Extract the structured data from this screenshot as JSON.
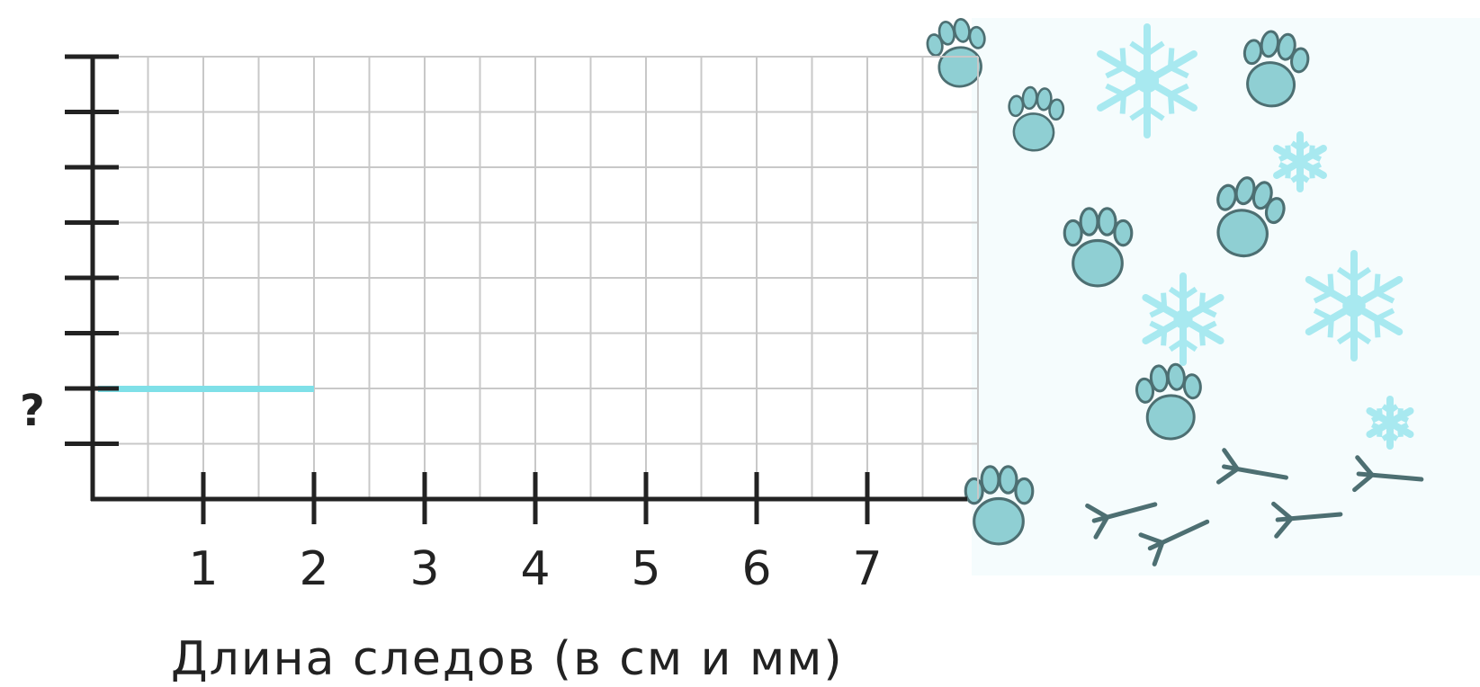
{
  "chart_data": {
    "type": "bar",
    "orientation": "horizontal",
    "xlabel": "Длина следов (в см и мм)",
    "x_ticks": [
      "1",
      "2",
      "3",
      "4",
      "5",
      "6",
      "7"
    ],
    "y_label_marker": "?",
    "xlim": [
      0,
      8
    ],
    "grid": true,
    "bars": [
      {
        "row": 2,
        "value": 2
      }
    ],
    "colors": {
      "bar": "#7fe0e8",
      "grid": "#c8c8c8",
      "axis": "#222222"
    }
  },
  "illustration": {
    "description_icons": [
      "paw-print-icon",
      "bird-track-icon",
      "snowflake-icon"
    ]
  }
}
